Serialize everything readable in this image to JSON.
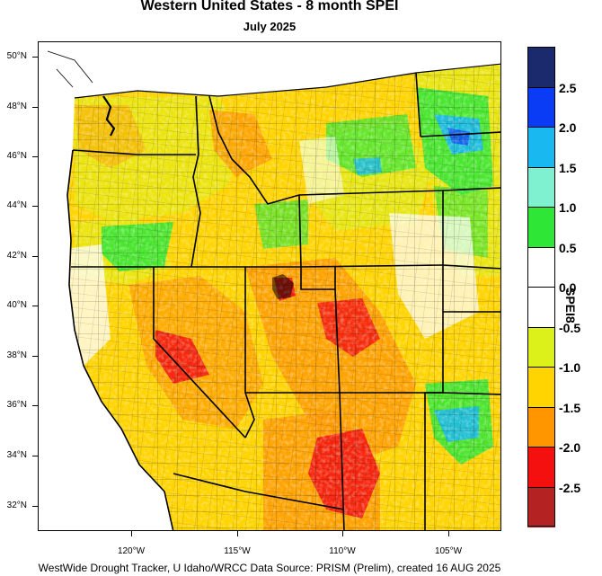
{
  "title": "Western United States - 8 month SPEI",
  "subtitle": "July 2025",
  "footer": "WestWide Drought Tracker, U Idaho/WRCC Data Source: PRISM (Prelim), created 16 AUG 2025",
  "latitude_labels": [
    "50°N",
    "48°N",
    "46°N",
    "44°N",
    "42°N",
    "40°N",
    "38°N",
    "36°N",
    "34°N",
    "32°N"
  ],
  "longitude_labels": [
    "120°W",
    "115°W",
    "110°W",
    "105°W"
  ],
  "colorbar": {
    "title": "SPEI8",
    "classes": [
      {
        "color": "#1a2a6c"
      },
      {
        "color": "#0a3cf5"
      },
      {
        "color": "#1ab8f0"
      },
      {
        "color": "#7ff0d0"
      },
      {
        "color": "#2ee636"
      },
      {
        "color": "#ffffff"
      },
      {
        "color": "#ffffff"
      },
      {
        "color": "#dcf01a"
      },
      {
        "color": "#ffd400"
      },
      {
        "color": "#ff9600"
      },
      {
        "color": "#f51010"
      },
      {
        "color": "#b52222"
      }
    ],
    "labels": [
      "2.5",
      "2.0",
      "1.5",
      "1.0",
      "0.5",
      "0.0",
      "-0.5",
      "-1.0",
      "-1.5",
      "-2.0",
      "-2.5"
    ]
  }
}
